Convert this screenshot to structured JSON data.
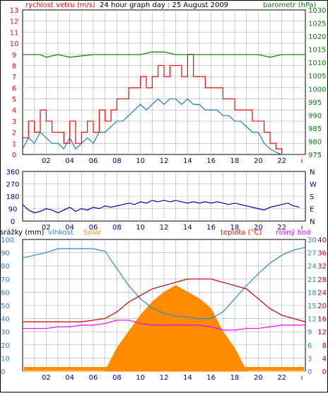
{
  "colors": {
    "wind_gust": "#ff0000",
    "wind_avg": "#1a7fb8",
    "pressure": "#008000",
    "direction": "#0000c8",
    "rain": "#3a78d8",
    "humidity": "#2a8ad0",
    "solar": "#ff8c00",
    "temperature": "#c00000",
    "dewpoint": "#ff00ff",
    "grid": "#b0b0b0"
  },
  "chart_data": [
    {
      "type": "line",
      "title": "24 hour graph day : 25 August 2009",
      "ylabel_left": "rychlost vetru (m/s)",
      "ylabel_right": "barometr (hPa)",
      "x_ticks": [
        "02",
        "04",
        "06",
        "08",
        "10",
        "12",
        "14",
        "16",
        "18",
        "20",
        "22"
      ],
      "x_range": [
        0,
        24
      ],
      "ylim_left": [
        0,
        13
      ],
      "ylim_right": [
        975,
        1030
      ],
      "y_ticks_left": [
        "0",
        "1",
        "2",
        "3",
        "4",
        "5",
        "6",
        "7",
        "8",
        "9",
        "10",
        "11",
        "12",
        "13"
      ],
      "y_ticks_right": [
        "975",
        "980",
        "985",
        "990",
        "995",
        "1000",
        "1005",
        "1010",
        "1015",
        "1020",
        "1025",
        "1030"
      ],
      "grid": true,
      "series": [
        {
          "name": "rychlost vetru (m/s)",
          "axis": "left",
          "x": [
            0,
            0.5,
            1,
            1.5,
            2,
            2.5,
            3,
            3.5,
            4,
            4.5,
            5,
            5.5,
            6,
            6.5,
            7,
            7.5,
            8,
            8.5,
            9,
            9.5,
            10,
            10.5,
            11,
            11.5,
            12,
            12.5,
            13,
            13.5,
            14,
            14.5,
            15,
            15.5,
            16,
            16.5,
            17,
            17.5,
            18,
            18.5,
            19,
            19.5,
            20,
            20.5,
            21,
            21.5,
            22,
            22.5,
            23,
            23.5
          ],
          "gust": [
            1.5,
            3,
            2,
            4,
            3,
            2,
            2,
            1,
            3,
            1,
            2,
            3,
            2,
            4,
            3,
            4,
            5,
            5,
            6,
            6,
            7,
            6,
            7,
            8,
            7,
            8,
            8,
            7,
            9,
            7,
            7,
            6,
            6,
            6,
            5,
            5,
            4,
            4,
            4,
            3,
            3,
            2,
            1,
            0.5,
            0,
            0,
            0,
            0
          ],
          "avg": [
            0.5,
            1.5,
            1,
            2,
            1.5,
            1,
            1,
            0.5,
            1.5,
            0.5,
            1,
            1.5,
            1,
            2,
            2,
            2.5,
            3,
            3,
            3.5,
            4,
            4.5,
            4,
            4.5,
            5,
            4.5,
            5,
            5,
            4.5,
            5,
            4.5,
            4.5,
            4,
            4,
            4,
            3.5,
            3.5,
            3,
            3,
            2.5,
            2,
            2,
            1,
            0.5,
            0.2,
            0,
            0,
            0,
            0
          ]
        },
        {
          "name": "barometr (hPa)",
          "axis": "right",
          "x": [
            0,
            1.5,
            2,
            3,
            4,
            6,
            8,
            10,
            11,
            12,
            13,
            14,
            16,
            18,
            20,
            21,
            22,
            24
          ],
          "values": [
            1013,
            1013,
            1012,
            1013,
            1012,
            1013,
            1013,
            1013,
            1014,
            1014,
            1013,
            1013,
            1013,
            1013,
            1013,
            1012,
            1013,
            1013
          ]
        }
      ]
    },
    {
      "type": "line",
      "title": "",
      "x_ticks": [
        "02",
        "04",
        "06",
        "08",
        "10",
        "12",
        "14",
        "16",
        "18",
        "20",
        "22"
      ],
      "x_range": [
        0,
        24
      ],
      "ylim": [
        0,
        360
      ],
      "y_ticks_left": [
        "0",
        "90",
        "180",
        "270",
        "360"
      ],
      "y_ticks_right": [
        "N",
        "E",
        "S",
        "W",
        "N"
      ],
      "grid": true,
      "series": [
        {
          "name": "smer vetru",
          "x": [
            0,
            0.5,
            1,
            1.5,
            2,
            2.5,
            3,
            3.5,
            4,
            4.5,
            5,
            5.5,
            6,
            6.5,
            7,
            7.5,
            8,
            8.5,
            9,
            9.5,
            10,
            10.5,
            11,
            11.5,
            12,
            12.5,
            13,
            13.5,
            14,
            14.5,
            15,
            15.5,
            16,
            16.5,
            17,
            17.5,
            18,
            18.5,
            19,
            19.5,
            20,
            20.5,
            21,
            21.5,
            22,
            22.5,
            23,
            23.5
          ],
          "values": [
            120,
            80,
            60,
            70,
            90,
            80,
            60,
            80,
            100,
            70,
            90,
            80,
            100,
            90,
            110,
            100,
            110,
            120,
            130,
            120,
            140,
            130,
            150,
            140,
            150,
            140,
            150,
            140,
            130,
            140,
            130,
            140,
            130,
            140,
            130,
            120,
            130,
            120,
            110,
            100,
            90,
            80,
            100,
            110,
            120,
            130,
            110,
            100
          ]
        }
      ]
    },
    {
      "type": "line",
      "title": "",
      "legend": [
        "srážky (mm)",
        "vlhkost",
        "Solar",
        "teplota (°C)",
        "rosný bod"
      ],
      "x_ticks": [
        "02",
        "04",
        "06",
        "08",
        "10",
        "12",
        "14",
        "16",
        "18",
        "20",
        "22"
      ],
      "x_range": [
        0,
        24
      ],
      "y_ticks_rain": [
        "0",
        "10",
        "20",
        "30",
        "40",
        "50",
        "60",
        "70",
        "80",
        "90",
        "100"
      ],
      "y_ticks_humidity": [
        "0",
        "3",
        "6",
        "9",
        "12",
        "15",
        "18",
        "21",
        "24",
        "27",
        "30"
      ],
      "y_ticks_solar": [
        "0",
        "4",
        "8",
        "12",
        "16",
        "20",
        "24",
        "28",
        "32",
        "36",
        "40"
      ],
      "y_ticks_temp": [
        "0",
        "4",
        "8",
        "12",
        "16",
        "20",
        "24",
        "28",
        "32",
        "36",
        "40"
      ],
      "grid": true,
      "series": [
        {
          "name": "vlhkost",
          "x": [
            0,
            1,
            2,
            3,
            4,
            5,
            6,
            7,
            8,
            9,
            10,
            11,
            12,
            13,
            14,
            15,
            16,
            17,
            18,
            19,
            20,
            21,
            22,
            23,
            24
          ],
          "values": [
            86,
            88,
            90,
            93,
            93,
            93,
            93,
            91,
            78,
            65,
            55,
            48,
            44,
            42,
            41,
            40,
            40,
            45,
            55,
            65,
            74,
            82,
            88,
            92,
            94
          ]
        },
        {
          "name": "teplota (°C)",
          "x": [
            0,
            1,
            2,
            3,
            4,
            5,
            6,
            7,
            8,
            9,
            10,
            11,
            12,
            13,
            14,
            15,
            16,
            17,
            18,
            19,
            20,
            21,
            22,
            23,
            24
          ],
          "values": [
            15,
            15,
            15,
            15,
            15,
            15,
            15.5,
            16,
            18,
            21,
            23,
            25,
            26,
            27,
            28,
            28,
            28,
            27,
            26,
            25,
            22,
            19,
            17,
            16,
            15
          ]
        },
        {
          "name": "rosný bod",
          "x": [
            0,
            1,
            2,
            3,
            4,
            5,
            6,
            7,
            8,
            9,
            10,
            11,
            12,
            13,
            14,
            15,
            16,
            17,
            18,
            19,
            20,
            21,
            22,
            23,
            24
          ],
          "values": [
            13,
            13,
            13,
            13.5,
            13.5,
            14,
            14,
            14.5,
            15.5,
            15.5,
            14.5,
            14,
            14,
            14,
            14,
            14,
            13.5,
            12.5,
            12.5,
            13,
            13,
            13.5,
            14,
            14,
            14
          ]
        },
        {
          "name": "Solar",
          "x": [
            0,
            6,
            7,
            8,
            9,
            10,
            11,
            12,
            13,
            14,
            15,
            16,
            17,
            18,
            19,
            24
          ],
          "values": [
            0,
            0,
            0,
            7,
            12,
            17,
            21,
            24,
            26,
            24,
            22,
            19,
            12,
            7,
            0,
            0
          ]
        },
        {
          "name": "srážky (mm)",
          "x": [
            0,
            24
          ],
          "values": [
            0,
            0
          ]
        }
      ]
    }
  ]
}
